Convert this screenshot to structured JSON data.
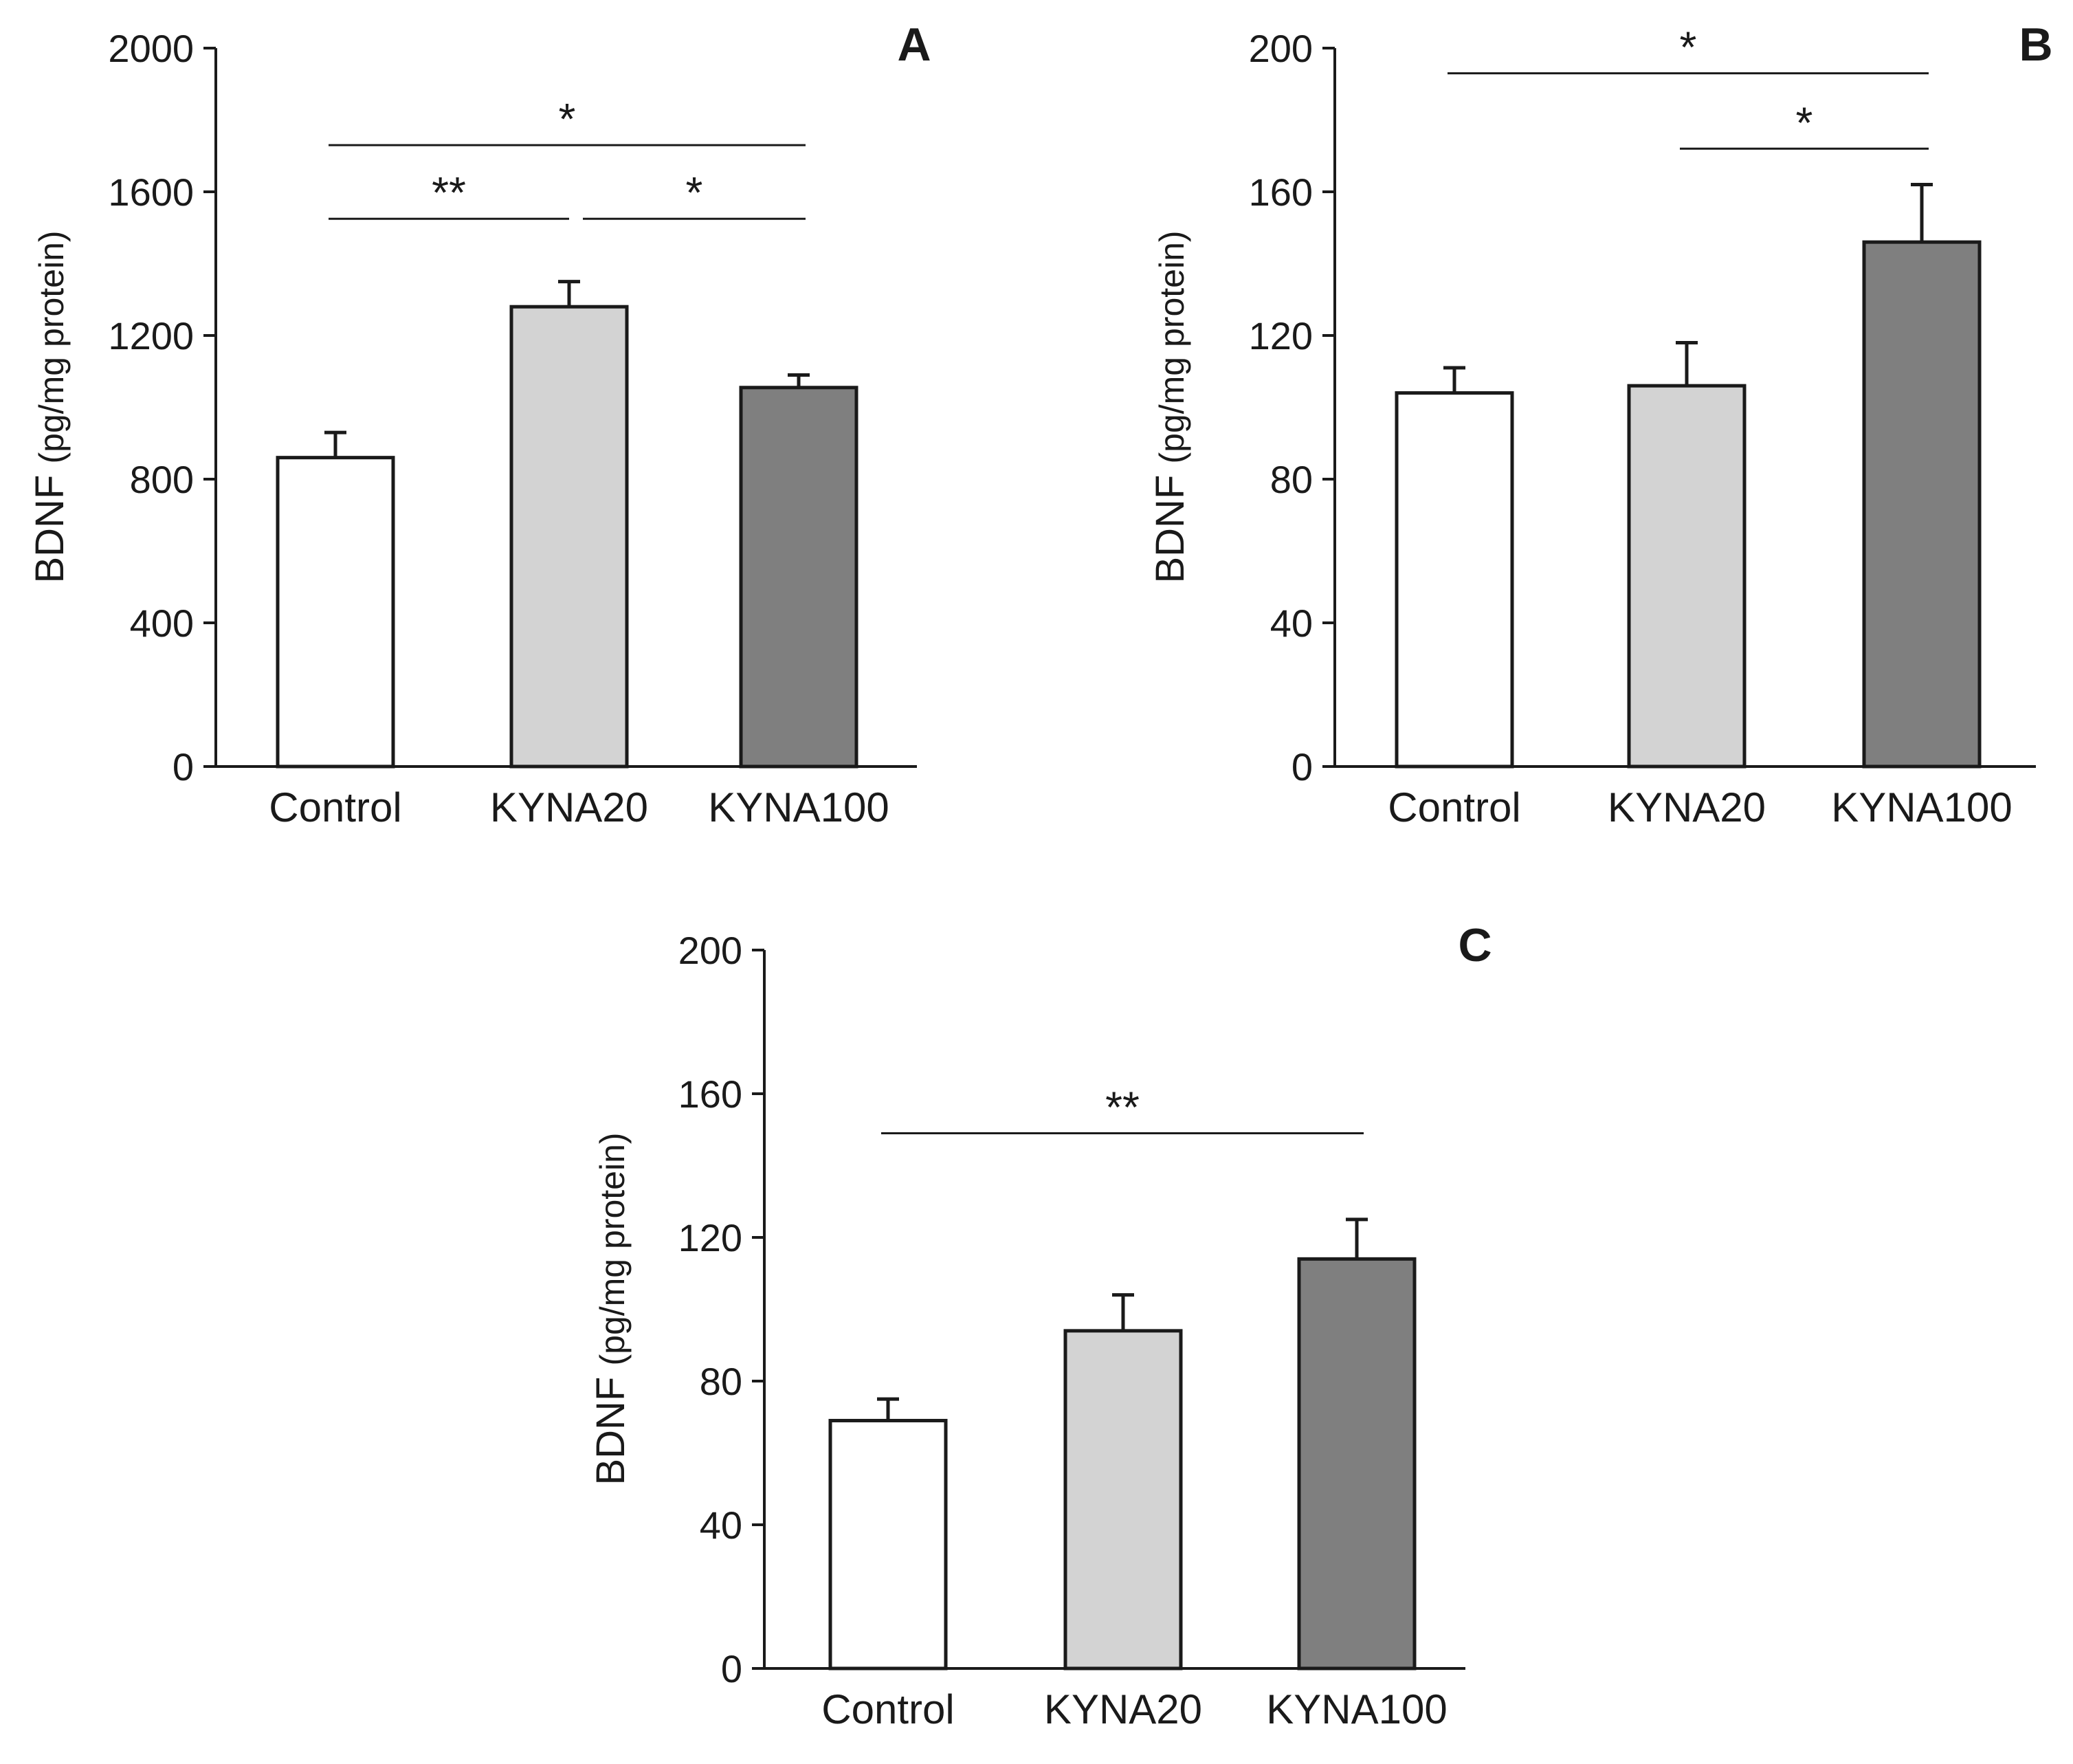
{
  "chart_data": [
    {
      "panel": "A",
      "type": "bar",
      "title": "",
      "ylabel_main": "BDNF",
      "ylabel_unit": "(pg/mg protein)",
      "xlabel": "",
      "categories": [
        "Control",
        "KYNA20",
        "KYNA100"
      ],
      "values": [
        860,
        1280,
        1055
      ],
      "errors": [
        70,
        70,
        35
      ],
      "colors": [
        "#ffffff",
        "#d3d3d3",
        "#7f7f7f"
      ],
      "ylim": [
        0,
        2000
      ],
      "yticks": [
        0,
        400,
        800,
        1200,
        1600,
        2000
      ],
      "ytick_labels": [
        "0",
        "400",
        "800",
        "1200",
        "1600",
        "2000"
      ],
      "significance": [
        {
          "from": 0,
          "to": 2,
          "label": "*",
          "y": 1730
        },
        {
          "from": 0,
          "to": 1,
          "label": "**",
          "y": 1525
        },
        {
          "from": 1,
          "to": 2,
          "label": "*",
          "y": 1525
        }
      ]
    },
    {
      "panel": "B",
      "type": "bar",
      "title": "",
      "ylabel_main": "BDNF",
      "ylabel_unit": "(pg/mg protein)",
      "xlabel": "",
      "categories": [
        "Control",
        "KYNA20",
        "KYNA100"
      ],
      "values": [
        104,
        106,
        146
      ],
      "errors": [
        7,
        12,
        16
      ],
      "colors": [
        "#ffffff",
        "#d3d3d3",
        "#7f7f7f"
      ],
      "ylim": [
        0,
        200
      ],
      "yticks": [
        0,
        40,
        80,
        120,
        160,
        200
      ],
      "ytick_labels": [
        "0",
        "40",
        "80",
        "120",
        "160",
        "200"
      ],
      "significance": [
        {
          "from": 0,
          "to": 2,
          "label": "*",
          "y": 193
        },
        {
          "from": 1,
          "to": 2,
          "label": "*",
          "y": 172
        }
      ]
    },
    {
      "panel": "C",
      "type": "bar",
      "title": "",
      "ylabel_main": "BDNF",
      "ylabel_unit": "(pg/mg protein)",
      "xlabel": "",
      "categories": [
        "Control",
        "KYNA20",
        "KYNA100"
      ],
      "values": [
        69,
        94,
        114
      ],
      "errors": [
        6,
        10,
        11
      ],
      "colors": [
        "#ffffff",
        "#d3d3d3",
        "#7f7f7f"
      ],
      "ylim": [
        0,
        200
      ],
      "yticks": [
        0,
        40,
        80,
        120,
        160,
        200
      ],
      "ytick_labels": [
        "0",
        "40",
        "80",
        "120",
        "160",
        "200"
      ],
      "significance": [
        {
          "from": 0,
          "to": 2,
          "label": "**",
          "y": 149
        }
      ]
    }
  ]
}
